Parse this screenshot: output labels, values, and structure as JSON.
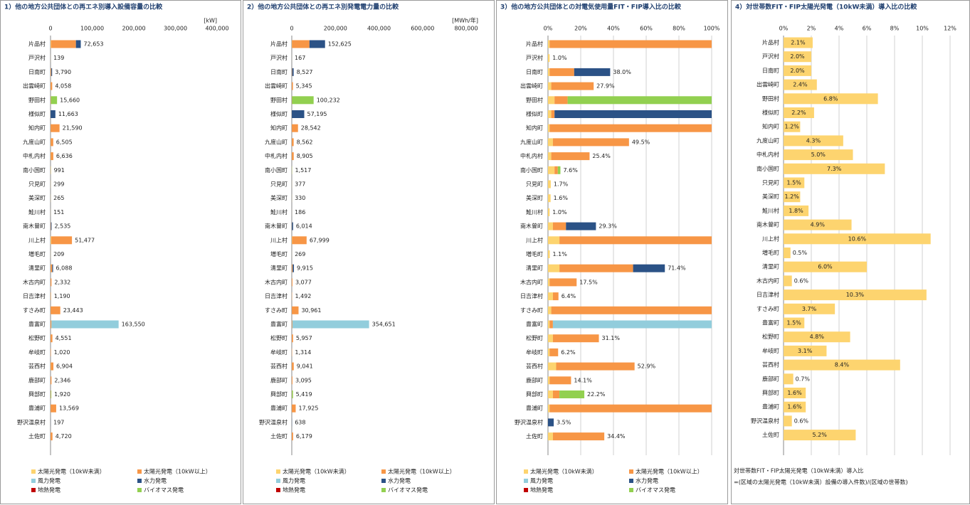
{
  "chart_data": [
    {
      "type": "bar",
      "orientation": "horizontal",
      "stacked": true,
      "grid": false,
      "title": "1）他の地方公共団体との再エネ別導入設備容量の比較",
      "unit": "[kW]",
      "categories": [
        "片品村",
        "戸沢村",
        "日南町",
        "出雲崎町",
        "野田村",
        "様似町",
        "知内町",
        "九度山町",
        "中札内村",
        "南小国町",
        "只見町",
        "美深町",
        "鮭川村",
        "南木曽町",
        "川上村",
        "増毛町",
        "清里町",
        "木古内町",
        "日吉津村",
        "すさみ町",
        "豊富町",
        "松野町",
        "牟岐町",
        "芸西村",
        "鹿部町",
        "興部町",
        "豊浦町",
        "野沢温泉村",
        "土佐町"
      ],
      "xlim": [
        0,
        400000
      ],
      "xticks": [
        0,
        {
          "value": 100000,
          "label": "100,000"
        },
        {
          "value": 200000,
          "label": "200,000"
        },
        {
          "value": 300000,
          "label": "300,000"
        },
        {
          "value": 400000,
          "label": "400,000"
        }
      ],
      "series": [
        {
          "name": "太陽光発電（10kW未満）",
          "color": "#fdd46f",
          "values": [
            1000,
            139,
            300,
            400,
            300,
            200,
            300,
            500,
            600,
            500,
            299,
            265,
            151,
            200,
            1500,
            209,
            500,
            100,
            500,
            300,
            200,
            300,
            100,
            700,
            100,
            300,
            300,
            0,
            300
          ]
        },
        {
          "name": "太陽光発電（10kW以上）",
          "color": "#f79646",
          "values": [
            60000,
            0,
            1500,
            3658,
            660,
            0,
            21290,
            6005,
            6036,
            300,
            0,
            0,
            0,
            800,
            49977,
            0,
            3500,
            2232,
            690,
            23143,
            2000,
            4251,
            920,
            6204,
            2246,
            500,
            13269,
            0,
            4420
          ]
        },
        {
          "name": "風力発電",
          "color": "#92cddc",
          "values": [
            0,
            0,
            0,
            0,
            0,
            0,
            0,
            0,
            0,
            0,
            0,
            0,
            0,
            0,
            0,
            0,
            0,
            0,
            0,
            0,
            161350,
            0,
            0,
            0,
            0,
            0,
            0,
            0,
            0
          ]
        },
        {
          "name": "水力発電",
          "color": "#2b5286",
          "values": [
            11653,
            0,
            1990,
            0,
            0,
            11463,
            0,
            0,
            0,
            0,
            0,
            0,
            0,
            1535,
            0,
            0,
            2088,
            0,
            0,
            0,
            0,
            0,
            0,
            0,
            0,
            0,
            0,
            197,
            0
          ]
        },
        {
          "name": "地熱発電",
          "color": "#c00000",
          "values": [
            0,
            0,
            0,
            0,
            0,
            0,
            0,
            0,
            0,
            0,
            0,
            0,
            0,
            0,
            0,
            0,
            0,
            0,
            0,
            0,
            0,
            0,
            0,
            0,
            0,
            0,
            0,
            0,
            0
          ]
        },
        {
          "name": "バイオマス発電",
          "color": "#92d050",
          "values": [
            0,
            0,
            0,
            0,
            14700,
            0,
            0,
            0,
            0,
            191,
            0,
            0,
            0,
            0,
            0,
            0,
            0,
            0,
            0,
            0,
            0,
            0,
            0,
            0,
            0,
            1120,
            0,
            0,
            0
          ]
        }
      ],
      "totals": [
        72653,
        139,
        3790,
        4058,
        15660,
        11663,
        21590,
        6505,
        6636,
        991,
        299,
        265,
        151,
        2535,
        51477,
        209,
        6088,
        2332,
        1190,
        23443,
        163550,
        4551,
        1020,
        6904,
        2346,
        1920,
        13569,
        197,
        4720
      ],
      "total_labels": [
        "72,653",
        "139",
        "3,790",
        "4,058",
        "15,660",
        "11,663",
        "21,590",
        "6,505",
        "6,636",
        "991",
        "299",
        "265",
        "151",
        "2,535",
        "51,477",
        "209",
        "6,088",
        "2,332",
        "1,190",
        "23,443",
        "163,550",
        "4,551",
        "1,020",
        "6,904",
        "2,346",
        "1,920",
        "13,569",
        "197",
        "4,720"
      ]
    },
    {
      "type": "bar",
      "orientation": "horizontal",
      "stacked": true,
      "grid": false,
      "title": "2）他の地方公共団体との再エネ別発電電力量の比較",
      "unit": "[MWh/年]",
      "categories": [
        "片品村",
        "戸沢村",
        "日南町",
        "出雲崎町",
        "野田村",
        "様似町",
        "知内町",
        "九度山町",
        "中札内村",
        "南小国町",
        "只見町",
        "美深町",
        "鮭川村",
        "南木曽町",
        "川上村",
        "増毛町",
        "清里町",
        "木古内町",
        "日吉津村",
        "すさみ町",
        "豊富町",
        "松野町",
        "牟岐町",
        "芸西村",
        "鹿部町",
        "興部町",
        "豊浦町",
        "野沢温泉村",
        "土佐町"
      ],
      "xlim": [
        0,
        800000
      ],
      "xticks": [
        0,
        {
          "value": 200000,
          "label": "200,000"
        },
        {
          "value": 400000,
          "label": "400,000"
        },
        {
          "value": 600000,
          "label": "600,000"
        },
        {
          "value": 800000,
          "label": "800,000"
        }
      ],
      "series": [
        {
          "name": "太陽光発電（10kW未満）",
          "color": "#fdd46f",
          "values": [
            1200,
            167,
            300,
            400,
            300,
            200,
            300,
            500,
            600,
            500,
            377,
            330,
            186,
            200,
            1500,
            269,
            500,
            100,
            500,
            300,
            200,
            300,
            100,
            700,
            100,
            300,
            300,
            0,
            300
          ]
        },
        {
          "name": "太陽光発電（10kW以上）",
          "color": "#f79646",
          "values": [
            80000,
            0,
            1500,
            4945,
            900,
            0,
            28242,
            8062,
            8305,
            300,
            0,
            0,
            0,
            800,
            66499,
            0,
            3500,
            2977,
            992,
            30661,
            2500,
            5657,
            1214,
            8341,
            2995,
            600,
            17625,
            0,
            5879
          ]
        },
        {
          "name": "風力発電",
          "color": "#92cddc",
          "values": [
            0,
            0,
            0,
            0,
            0,
            0,
            0,
            0,
            0,
            0,
            0,
            0,
            0,
            0,
            0,
            0,
            0,
            0,
            0,
            0,
            351951,
            0,
            0,
            0,
            0,
            0,
            0,
            0,
            0
          ]
        },
        {
          "name": "水力発電",
          "color": "#2b5286",
          "values": [
            71425,
            0,
            6727,
            0,
            0,
            56995,
            0,
            0,
            0,
            0,
            0,
            0,
            0,
            5014,
            0,
            0,
            5915,
            0,
            0,
            0,
            0,
            0,
            0,
            0,
            0,
            0,
            0,
            638,
            0
          ]
        },
        {
          "name": "地熱発電",
          "color": "#c00000",
          "values": [
            0,
            0,
            0,
            0,
            0,
            0,
            0,
            0,
            0,
            0,
            0,
            0,
            0,
            0,
            0,
            0,
            0,
            0,
            0,
            0,
            0,
            0,
            0,
            0,
            0,
            0,
            0,
            0,
            0
          ]
        },
        {
          "name": "バイオマス発電",
          "color": "#92d050",
          "values": [
            0,
            0,
            0,
            0,
            99032,
            0,
            0,
            0,
            0,
            717,
            0,
            0,
            0,
            0,
            0,
            0,
            0,
            0,
            0,
            0,
            0,
            0,
            0,
            0,
            0,
            4519,
            0,
            0,
            0
          ]
        }
      ],
      "totals": [
        152625,
        167,
        8527,
        5345,
        100232,
        57195,
        28542,
        8562,
        8905,
        1517,
        377,
        330,
        186,
        6014,
        67999,
        269,
        9915,
        3077,
        1492,
        30961,
        354651,
        5957,
        1314,
        9041,
        3095,
        5419,
        17925,
        638,
        6179
      ],
      "total_labels": [
        "152,625",
        "167",
        "8,527",
        "5,345",
        "100,232",
        "57,195",
        "28,542",
        "8,562",
        "8,905",
        "1,517",
        "377",
        "330",
        "186",
        "6,014",
        "67,999",
        "269",
        "9,915",
        "3,077",
        "1,492",
        "30,961",
        "354,651",
        "5,957",
        "1,314",
        "9,041",
        "3,095",
        "5,419",
        "17,925",
        "638",
        "6,179"
      ]
    },
    {
      "type": "bar",
      "orientation": "horizontal",
      "stacked": true,
      "grid": true,
      "title": "3）他の地方公共団体との対電気使用量FIT・FIP導入比の比較",
      "categories": [
        "片品村",
        "戸沢村",
        "日南町",
        "出雲崎町",
        "野田村",
        "様似町",
        "知内町",
        "九度山町",
        "中札内村",
        "南小国町",
        "只見町",
        "美深町",
        "鮭川村",
        "南木曽町",
        "川上村",
        "増毛町",
        "清里町",
        "木古内町",
        "日吉津村",
        "すさみ町",
        "豊富町",
        "松野町",
        "牟岐町",
        "芸西村",
        "鹿部町",
        "興部町",
        "豊浦町",
        "野沢温泉村",
        "土佐町"
      ],
      "xlim": [
        0,
        100
      ],
      "xticks": [
        {
          "value": 0,
          "label": "0%"
        },
        {
          "value": 20,
          "label": "20%"
        },
        {
          "value": 40,
          "label": "40%"
        },
        {
          "value": 60,
          "label": "60%"
        },
        {
          "value": 80,
          "label": "80%"
        },
        {
          "value": 100,
          "label": "100%"
        }
      ],
      "series": [
        {
          "name": "太陽光発電（10kW未満）",
          "color": "#fdd46f",
          "values": [
            1,
            1.0,
            1,
            2,
            4,
            2,
            1,
            3,
            2,
            4,
            1.7,
            1.6,
            1.0,
            3,
            7,
            1.1,
            7,
            1,
            3,
            2,
            1,
            3,
            1,
            5,
            1,
            3,
            1,
            0,
            3
          ]
        },
        {
          "name": "太陽光発電（10kW以上）",
          "color": "#f79646",
          "values": [
            99,
            0,
            15,
            25.9,
            8,
            2,
            99,
            46.5,
            23.4,
            2,
            0,
            0,
            0,
            8,
            93,
            0,
            45,
            16.5,
            3.4,
            98,
            2,
            28.1,
            5.2,
            47.9,
            13.1,
            4,
            99,
            0,
            31.4
          ]
        },
        {
          "name": "風力発電",
          "color": "#92cddc",
          "values": [
            0,
            0,
            0,
            0,
            0,
            0,
            0,
            0,
            0,
            0,
            0,
            0,
            0,
            0,
            0,
            0,
            0,
            0,
            0,
            0,
            97,
            0,
            0,
            0,
            0,
            0,
            0,
            0,
            0
          ]
        },
        {
          "name": "水力発電",
          "color": "#2b5286",
          "values": [
            0,
            0,
            22,
            0,
            0,
            96,
            0,
            0,
            0,
            0,
            0,
            0,
            0,
            18.3,
            0,
            0,
            19.4,
            0,
            0,
            0,
            0,
            0,
            0,
            0,
            0,
            0,
            0,
            3.5,
            0
          ]
        },
        {
          "name": "地熱発電",
          "color": "#c00000",
          "values": [
            0,
            0,
            0,
            0,
            0,
            0,
            0,
            0,
            0,
            0,
            0,
            0,
            0,
            0,
            0,
            0,
            0,
            0,
            0,
            0,
            0,
            0,
            0,
            0,
            0,
            0,
            0,
            0,
            0
          ]
        },
        {
          "name": "バイオマス発電",
          "color": "#92d050",
          "values": [
            0,
            0,
            0,
            0,
            88,
            0,
            0,
            0,
            0,
            1.6,
            0,
            0,
            0,
            0,
            0,
            0,
            0,
            0,
            0,
            0,
            0,
            0,
            0,
            0,
            0,
            15.2,
            0,
            0,
            0
          ]
        }
      ],
      "totals": [
        null,
        1.0,
        38.0,
        27.9,
        null,
        null,
        null,
        49.5,
        25.4,
        7.6,
        1.7,
        1.6,
        1.0,
        29.3,
        null,
        1.1,
        71.4,
        17.5,
        6.4,
        null,
        null,
        31.1,
        6.2,
        52.9,
        14.1,
        22.2,
        null,
        3.5,
        34.4
      ],
      "total_labels": [
        null,
        "1.0%",
        "38.0%",
        "27.9%",
        null,
        null,
        null,
        "49.5%",
        "25.4%",
        "7.6%",
        "1.7%",
        "1.6%",
        "1.0%",
        "29.3%",
        null,
        "1.1%",
        "71.4%",
        "17.5%",
        "6.4%",
        null,
        null,
        "31.1%",
        "6.2%",
        "52.9%",
        "14.1%",
        "22.2%",
        null,
        "3.5%",
        "34.4%"
      ]
    },
    {
      "type": "bar",
      "orientation": "horizontal",
      "stacked": false,
      "grid": true,
      "title": "4）対世帯数FIT・FIP太陽光発電（10kW未満）導入比の比較",
      "categories": [
        "片品村",
        "戸沢村",
        "日南町",
        "出雲崎町",
        "野田村",
        "様似町",
        "知内町",
        "九度山町",
        "中札内村",
        "南小国町",
        "只見町",
        "美深町",
        "鮭川村",
        "南木曽町",
        "川上村",
        "増毛町",
        "清里町",
        "木古内町",
        "日吉津村",
        "すさみ町",
        "豊富町",
        "松野町",
        "牟岐町",
        "芸西村",
        "鹿部町",
        "興部町",
        "豊浦町",
        "野沢温泉村",
        "土佐町"
      ],
      "xlim": [
        0,
        12
      ],
      "xticks": [
        {
          "value": 0,
          "label": "0%"
        },
        {
          "value": 2,
          "label": "2%"
        },
        {
          "value": 4,
          "label": "4%"
        },
        {
          "value": 6,
          "label": "6%"
        },
        {
          "value": 8,
          "label": "8%"
        },
        {
          "value": 10,
          "label": "10%"
        },
        {
          "value": 12,
          "label": "12%"
        }
      ],
      "color": "#fdd46f",
      "values": [
        2.1,
        2.0,
        2.0,
        2.4,
        6.8,
        2.2,
        1.2,
        4.3,
        5.0,
        7.3,
        1.5,
        1.2,
        1.8,
        4.9,
        10.6,
        0.5,
        6.0,
        0.6,
        10.3,
        3.7,
        1.5,
        4.8,
        3.1,
        8.4,
        0.7,
        1.6,
        1.6,
        0.6,
        5.2
      ],
      "value_labels": [
        "2.1%",
        "2.0%",
        "2.0%",
        "2.4%",
        "6.8%",
        "2.2%",
        "1.2%",
        "4.3%",
        "5.0%",
        "7.3%",
        "1.5%",
        "1.2%",
        "1.8%",
        "4.9%",
        "10.6%",
        "0.5%",
        "6.0%",
        "0.6%",
        "10.3%",
        "3.7%",
        "1.5%",
        "4.8%",
        "3.1%",
        "8.4%",
        "0.7%",
        "1.6%",
        "1.6%",
        "0.6%",
        "5.2%"
      ],
      "note": [
        "対世帯数FIT・FIP太陽光発電（10kW未満）導入比",
        "=(区域の太陽光発電（10kW未満）設備の導入件数)/(区域の世帯数)"
      ]
    }
  ]
}
